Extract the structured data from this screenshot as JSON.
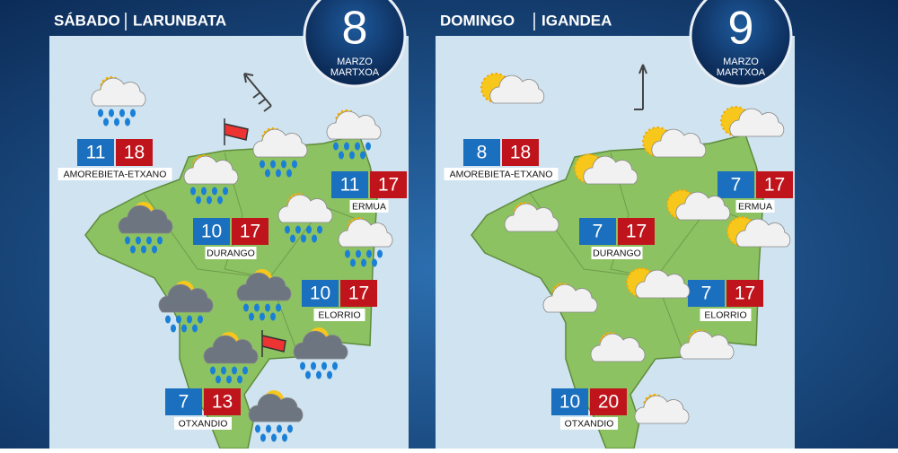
{
  "panels": [
    {
      "day": "SÁBADO",
      "day_eu": "LARUNBATA",
      "date": "8",
      "month": "MARZO",
      "month_eu": "MARTXOA",
      "cities": [
        {
          "name": "AMOREBIETA-ETXANO",
          "min": "11",
          "max": "18"
        },
        {
          "name": "ERMUA",
          "min": "11",
          "max": "17"
        },
        {
          "name": "DURANGO",
          "min": "10",
          "max": "17"
        },
        {
          "name": "ELORRIO",
          "min": "10",
          "max": "17"
        },
        {
          "name": "OTXANDIO",
          "min": "7",
          "max": "13"
        }
      ]
    },
    {
      "day": "DOMINGO",
      "day_eu": "IGANDEA",
      "date": "9",
      "month": "MARZO",
      "month_eu": "MARTXOA",
      "cities": [
        {
          "name": "AMOREBIETA-ETXANO",
          "min": "8",
          "max": "18"
        },
        {
          "name": "ERMUA",
          "min": "7",
          "max": "17"
        },
        {
          "name": "DURANGO",
          "min": "7",
          "max": "17"
        },
        {
          "name": "ELORRIO",
          "min": "7",
          "max": "17"
        },
        {
          "name": "OTXANDIO",
          "min": "10",
          "max": "20"
        }
      ]
    }
  ]
}
